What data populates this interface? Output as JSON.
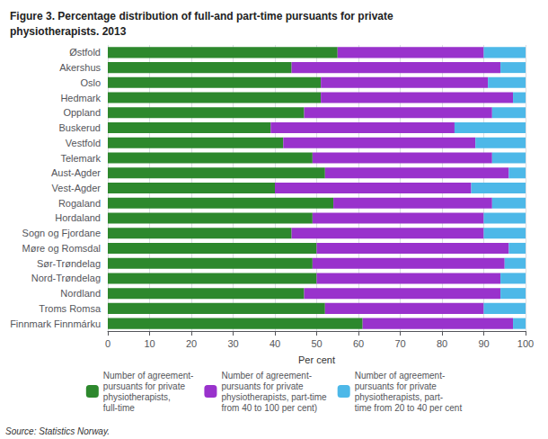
{
  "chart_data": {
    "type": "bar",
    "orientation": "horizontal",
    "stacked": true,
    "title": "Figure 3. Percentage distribution of full-and part-time pursuants for private\nphysiotherapists. 2013",
    "source": "Source: Statistics Norway.",
    "xlabel": "Per cent",
    "categories": [
      "Østfold",
      "Akershus",
      "Oslo",
      "Hedmark",
      "Oppland",
      "Buskerud",
      "Vestfold",
      "Telemark",
      "Aust-Agder",
      "Vest-Agder",
      "Rogaland",
      "Hordaland",
      "Sogn og Fjordane",
      "Møre og Romsdal",
      "Sør-Trøndelag",
      "Nord-Trøndelag",
      "Nordland",
      "Troms Romsa",
      "Finnmark Finnmárku"
    ],
    "series": [
      {
        "name": "Number of agreement-\npursuants for private\nphysiotherapists,\nfull-time",
        "color": "#2d882d",
        "values": [
          55,
          44,
          51,
          51,
          47,
          39,
          42,
          49,
          52,
          40,
          54,
          49,
          44,
          50,
          49,
          50,
          47,
          52,
          61
        ]
      },
      {
        "name": "Number of agreement-\npursuants for private\nphysiotherapists, part-time\nfrom 40 to 100 per cent)",
        "color": "#9932cc",
        "values": [
          35,
          50,
          40,
          46,
          45,
          44,
          46,
          43,
          44,
          47,
          38,
          41,
          46,
          46,
          46,
          44,
          47,
          38,
          36
        ]
      },
      {
        "name": "Number of agreement-\npursuants for private\nphysiotherapists, part-\ntime from 20 to 40 per cent",
        "color": "#4db8e8",
        "values": [
          10,
          6,
          9,
          3,
          8,
          17,
          12,
          8,
          4,
          13,
          8,
          10,
          10,
          4,
          5,
          6,
          6,
          10,
          3
        ]
      }
    ],
    "xlim": [
      0,
      100
    ],
    "xticks": [
      0,
      10,
      20,
      30,
      40,
      50,
      60,
      70,
      80,
      90,
      100
    ],
    "grid": true,
    "legend": "bottom"
  }
}
